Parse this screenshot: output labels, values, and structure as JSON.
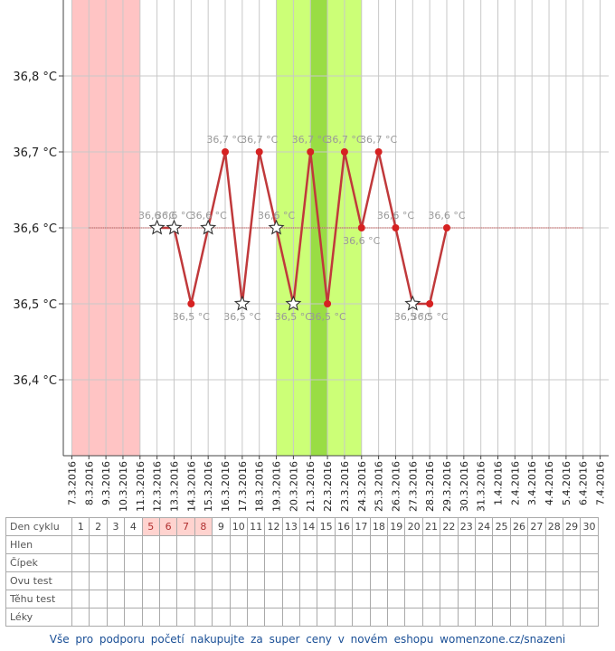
{
  "chart_data": {
    "type": "line",
    "y_unit": "°C",
    "ylim": [
      36.3,
      36.9
    ],
    "y_ticks": [
      "36,4 °C",
      "36,5 °C",
      "36,6 °C",
      "36,7 °C",
      "36,8 °C"
    ],
    "x_tick_labels": [
      "7.3.2016",
      "8.3.2016",
      "9.3.2016",
      "10.3.2016",
      "11.3.2016",
      "12.3.2016",
      "13.3.2016",
      "14.3.2016",
      "15.3.2016",
      "16.3.2016",
      "17.3.2016",
      "18.3.2016",
      "19.3.2016",
      "20.3.2016",
      "21.3.2016",
      "22.3.2016",
      "23.3.2016",
      "24.3.2016",
      "25.3.2016",
      "26.3.2016",
      "27.3.2016",
      "28.3.2016",
      "29.3.2016",
      "30.3.2016",
      "31.3.2016",
      "1.4.2016",
      "2.4.2016",
      "3.4.2016",
      "4.4.2016",
      "5.4.2016",
      "6.4.2016",
      "7.4.2016"
    ],
    "grid": true,
    "series": [
      {
        "points": [
          {
            "x": "12.3.2016",
            "y": 36.6,
            "marker": "star",
            "label": "36,6 °C"
          },
          {
            "x": "13.3.2016",
            "y": 36.6,
            "marker": "star",
            "label": "36,6 °C"
          },
          {
            "x": "14.3.2016",
            "y": 36.5,
            "marker": "dot",
            "label": "36,5 °C"
          },
          {
            "x": "15.3.2016",
            "y": 36.6,
            "marker": "star",
            "label": "36,6 °C"
          },
          {
            "x": "16.3.2016",
            "y": 36.7,
            "marker": "dot",
            "label": "36,7 °C"
          },
          {
            "x": "17.3.2016",
            "y": 36.5,
            "marker": "star",
            "label": "36,5 °C"
          },
          {
            "x": "18.3.2016",
            "y": 36.7,
            "marker": "dot",
            "label": "36,7 °C"
          },
          {
            "x": "19.3.2016",
            "y": 36.6,
            "marker": "star",
            "label": "36,6 °C"
          },
          {
            "x": "20.3.2016",
            "y": 36.5,
            "marker": "star",
            "label": "36,5 °C"
          },
          {
            "x": "21.3.2016",
            "y": 36.7,
            "marker": "dot",
            "label": "36,7 °C"
          },
          {
            "x": "22.3.2016",
            "y": 36.5,
            "marker": "dot",
            "label": "36,5 °C"
          },
          {
            "x": "23.3.2016",
            "y": 36.7,
            "marker": "dot",
            "label": "36,7 °C"
          },
          {
            "x": "24.3.2016",
            "y": 36.6,
            "marker": "dot",
            "label": "36,6 °C"
          },
          {
            "x": "25.3.2016",
            "y": 36.7,
            "marker": "dot",
            "label": "36,7 °C"
          },
          {
            "x": "26.3.2016",
            "y": 36.6,
            "marker": "dot",
            "label": "36,6 °C"
          },
          {
            "x": "27.3.2016",
            "y": 36.5,
            "marker": "star",
            "label": "36,5 °C"
          },
          {
            "x": "28.3.2016",
            "y": 36.5,
            "marker": "dot",
            "label": "36,5 °C"
          },
          {
            "x": "29.3.2016",
            "y": 36.6,
            "marker": "dot",
            "label": "36,6 °C"
          }
        ]
      }
    ],
    "reference_line": {
      "y": 36.6,
      "from": "8.3.2016",
      "to": "6.4.2016"
    },
    "bands": [
      {
        "from": "7.3.2016",
        "to": "11.3.2016",
        "color": "#ffc4c4"
      },
      {
        "from": "19.3.2016",
        "to": "24.3.2016",
        "color": "#ccff77"
      },
      {
        "from": "21.3.2016",
        "to": "22.3.2016",
        "color": "#99dd44"
      }
    ],
    "line_color": "#c0393b",
    "dot_color": "#d62222"
  },
  "table": {
    "rows": [
      {
        "label": "Den cyklu",
        "cells": [
          "1",
          "2",
          "3",
          "4",
          "5",
          "6",
          "7",
          "8",
          "9",
          "10",
          "11",
          "12",
          "13",
          "14",
          "15",
          "16",
          "17",
          "18",
          "19",
          "20",
          "21",
          "22",
          "23",
          "24",
          "25",
          "26",
          "27",
          "28",
          "29",
          "30"
        ]
      },
      {
        "label": "Hlen",
        "cells": []
      },
      {
        "label": "Čípek",
        "cells": []
      },
      {
        "label": "Ovu test",
        "cells": []
      },
      {
        "label": "Těhu test",
        "cells": []
      },
      {
        "label": "Léky",
        "cells": []
      }
    ],
    "highlighted_days": [
      5,
      6,
      7,
      8
    ],
    "highlight_color": "#ffd3cf"
  },
  "footer": {
    "text": "Vše pro podporu početí nakupujte za super ceny v novém eshopu womenzone.cz/snazeni"
  }
}
